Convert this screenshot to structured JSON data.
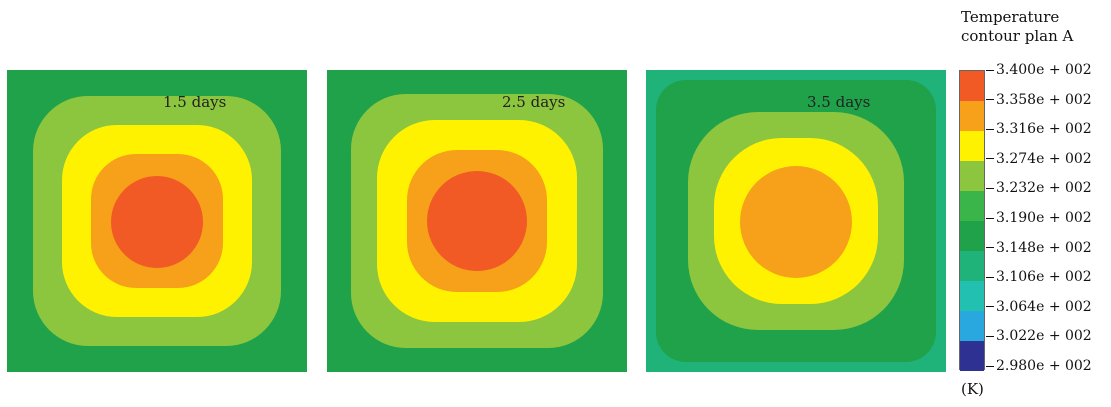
{
  "panels": [
    {
      "label": "1.5 days",
      "bands": [
        "#1fa24a",
        "#8cc63f",
        "#fff200",
        "#f7a11a",
        "#f15a24"
      ]
    },
    {
      "label": "2.5 days",
      "bands": [
        "#1fa24a",
        "#8cc63f",
        "#fff200",
        "#f7a11a",
        "#f15a24"
      ]
    },
    {
      "label": "3.5 days",
      "bands": [
        "#1fb37a",
        "#1fa24a",
        "#8cc63f",
        "#fff200",
        "#f7a11a"
      ]
    }
  ],
  "legend": {
    "title_line1": "Temperature",
    "title_line2": "contour plan A",
    "unit": "(K)",
    "ticks": [
      "3.400e + 002",
      "3.358e + 002",
      "3.316e + 002",
      "3.274e + 002",
      "3.232e + 002",
      "3.190e + 002",
      "3.148e + 002",
      "3.106e + 002",
      "3.064e + 002",
      "3.022e + 002",
      "2.980e + 002"
    ],
    "colors": [
      "#f15a24",
      "#f7a11a",
      "#fff200",
      "#8cc63f",
      "#39b54a",
      "#1fa24a",
      "#1fb37a",
      "#22c0b0",
      "#29a8e0",
      "#2e3192"
    ]
  }
}
